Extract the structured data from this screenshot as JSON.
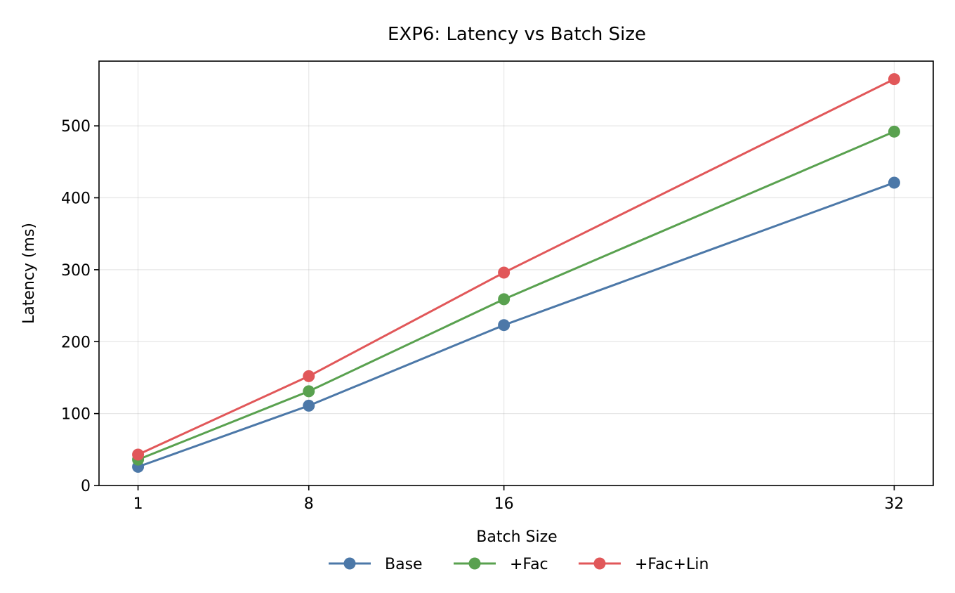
{
  "chart_data": {
    "type": "line",
    "title": "EXP6: Latency vs Batch Size",
    "xlabel": "Batch Size",
    "ylabel": "Latency (ms)",
    "x": [
      1,
      8,
      16,
      32
    ],
    "x_tick_labels": [
      "1",
      "8",
      "16",
      "32"
    ],
    "xlim": [
      -0.6,
      33.6
    ],
    "ylim": [
      0,
      590
    ],
    "y_ticks": [
      0,
      100,
      200,
      300,
      400,
      500
    ],
    "y_tick_labels": [
      "0",
      "100",
      "200",
      "300",
      "400",
      "500"
    ],
    "grid": true,
    "legend_placement": "bottom-center",
    "series": [
      {
        "name": "Base",
        "color": "#4c78a8",
        "values": [
          26,
          111,
          223,
          421
        ]
      },
      {
        "name": "+Fac",
        "color": "#59a14f",
        "values": [
          36,
          131,
          259,
          492
        ]
      },
      {
        "name": "+Fac+Lin",
        "color": "#e15759",
        "values": [
          43,
          152,
          296,
          565
        ]
      }
    ]
  }
}
